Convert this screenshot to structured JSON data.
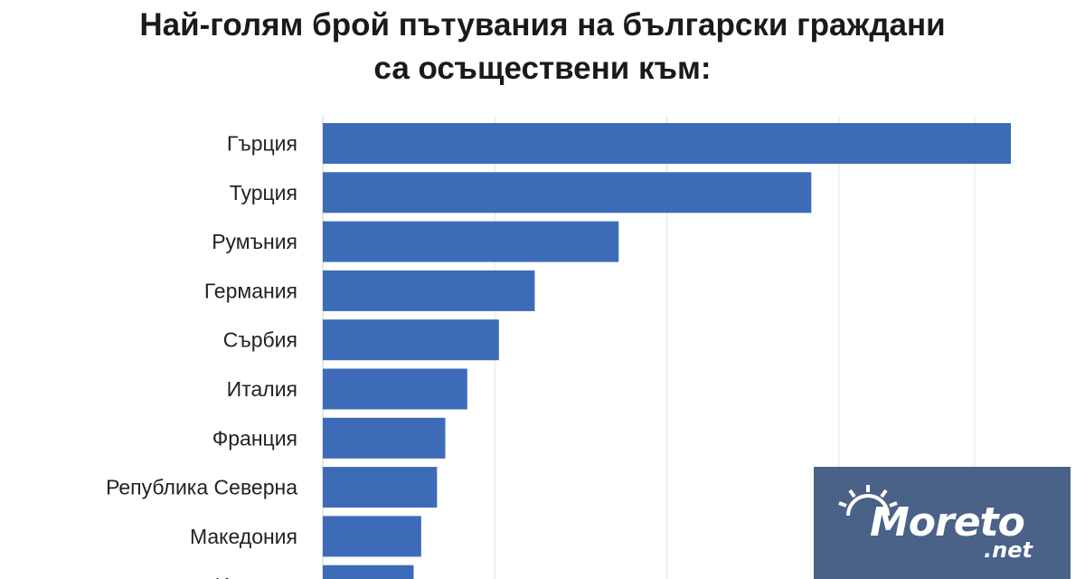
{
  "chart_data": {
    "type": "bar",
    "orientation": "horizontal",
    "title": "Най-голям брой пътувания на български граждани са осъществени към:",
    "title_lines": [
      "Най-голям брой пътувания на български граждани",
      "са осъществени към:"
    ],
    "categories": [
      "Гърция",
      "Турция",
      "Румъния",
      "Германия",
      "Сърбия",
      "Италия",
      "Франция",
      "Република Северна",
      "Македония",
      "Испания"
    ],
    "values": [
      100,
      71,
      43,
      30.8,
      25.6,
      21,
      17.8,
      16.6,
      14.3,
      13.2
    ],
    "xlim": [
      0,
      100
    ],
    "grid": true,
    "color": "#3d6bb8"
  },
  "watermark": {
    "brand": "Moreto",
    "domain": ".net",
    "color": "#4a6188"
  }
}
